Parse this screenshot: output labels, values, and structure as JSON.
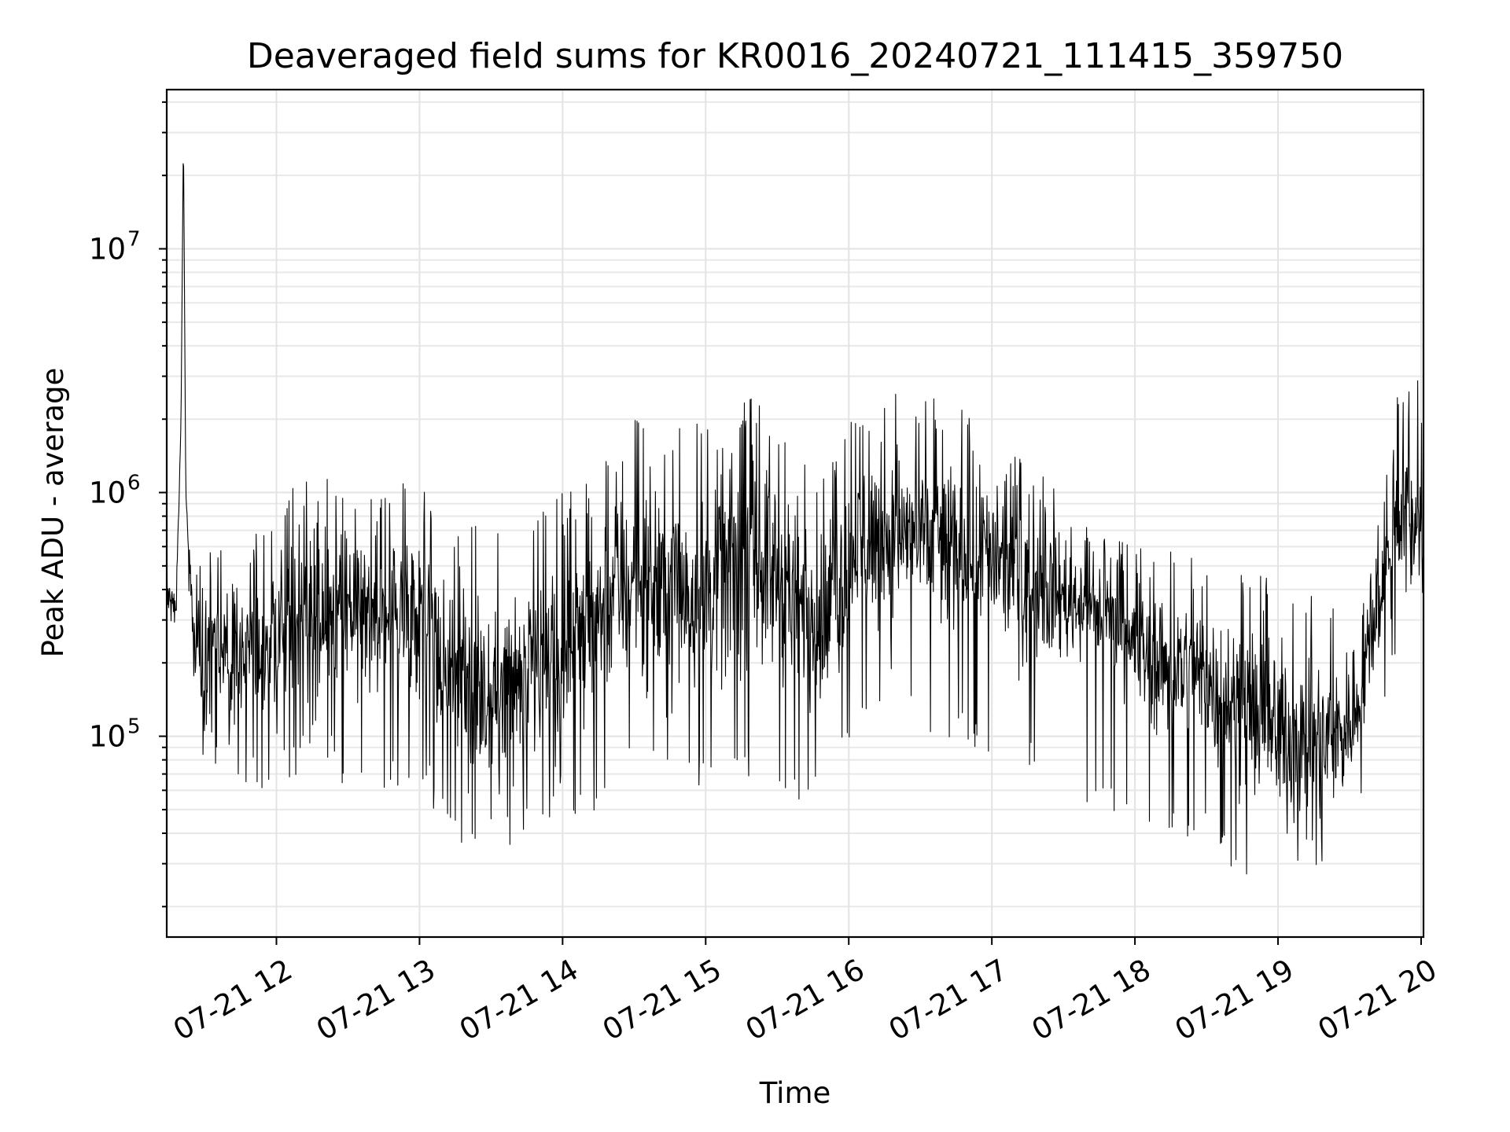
{
  "chart_data": {
    "type": "line",
    "title": "Deaveraged field sums for KR0016_20240721_111415_359750",
    "xlabel": "Time",
    "ylabel": "Peak ADU - average",
    "yscale": "log",
    "xlim": [
      "2024-07-21 11:14",
      "2024-07-21 20:01"
    ],
    "ylim": [
      15000,
      45000000
    ],
    "grid": true,
    "x_ticks": [
      "07-21 12",
      "07-21 13",
      "07-21 14",
      "07-21 15",
      "07-21 16",
      "07-21 17",
      "07-21 18",
      "07-21 19",
      "07-21 20"
    ],
    "y_ticks": [
      {
        "base": "10",
        "exp": "5",
        "value": 100000
      },
      {
        "base": "10",
        "exp": "6",
        "value": 1000000
      },
      {
        "base": "10",
        "exp": "7",
        "value": 10000000
      }
    ],
    "line_color": "#000000",
    "series": [
      {
        "x": [
          "2024-07-21 11:14",
          "2024-07-21 11:18",
          "2024-07-21 11:20",
          "2024-07-21 11:21",
          "2024-07-21 11:22",
          "2024-07-21 11:25",
          "2024-07-21 11:30",
          "2024-07-21 11:40",
          "2024-07-21 11:50",
          "2024-07-21 12:00",
          "2024-07-21 12:10",
          "2024-07-21 12:20",
          "2024-07-21 12:30",
          "2024-07-21 12:40",
          "2024-07-21 12:50",
          "2024-07-21 13:00",
          "2024-07-21 13:10",
          "2024-07-21 13:20",
          "2024-07-21 13:30",
          "2024-07-21 13:40",
          "2024-07-21 13:50",
          "2024-07-21 14:00",
          "2024-07-21 14:10",
          "2024-07-21 14:20",
          "2024-07-21 14:30",
          "2024-07-21 14:40",
          "2024-07-21 14:50",
          "2024-07-21 15:00",
          "2024-07-21 15:10",
          "2024-07-21 15:20",
          "2024-07-21 15:30",
          "2024-07-21 15:40",
          "2024-07-21 15:50",
          "2024-07-21 16:00",
          "2024-07-21 16:10",
          "2024-07-21 16:20",
          "2024-07-21 16:30",
          "2024-07-21 16:40",
          "2024-07-21 16:50",
          "2024-07-21 17:00",
          "2024-07-21 17:10",
          "2024-07-21 17:20",
          "2024-07-21 17:30",
          "2024-07-21 17:40",
          "2024-07-21 17:50",
          "2024-07-21 18:00",
          "2024-07-21 18:10",
          "2024-07-21 18:20",
          "2024-07-21 18:30",
          "2024-07-21 18:40",
          "2024-07-21 18:50",
          "2024-07-21 19:00",
          "2024-07-21 19:10",
          "2024-07-21 19:20",
          "2024-07-21 19:30",
          "2024-07-21 19:40",
          "2024-07-21 19:50",
          "2024-07-21 20:00",
          "2024-07-21 20:01"
        ],
        "y": [
          400000,
          350000,
          2000000,
          30000000,
          1000000,
          250000,
          200000,
          220000,
          250000,
          250000,
          280000,
          300000,
          320000,
          300000,
          330000,
          330000,
          200000,
          170000,
          150000,
          160000,
          170000,
          220000,
          280000,
          380000,
          420000,
          420000,
          420000,
          420000,
          480000,
          550000,
          450000,
          330000,
          300000,
          520000,
          650000,
          700000,
          650000,
          600000,
          600000,
          550000,
          450000,
          400000,
          380000,
          350000,
          300000,
          230000,
          200000,
          200000,
          170000,
          150000,
          120000,
          100000,
          100000,
          90000,
          110000,
          280000,
          800000,
          700000,
          500000
        ],
        "upper_envelope": [
          700000,
          600000,
          2000000,
          30000000,
          1000000,
          500000,
          600000,
          700000,
          700000,
          900000,
          1200000,
          1300000,
          1000000,
          1000000,
          1200000,
          1200000,
          600000,
          800000,
          700000,
          800000,
          900000,
          1000000,
          1200000,
          1500000,
          2000000,
          2000000,
          2000000,
          2200000,
          2500000,
          2600000,
          2000000,
          1500000,
          1300000,
          2000000,
          2300000,
          2800000,
          2500000,
          2500000,
          2200000,
          1500000,
          1500000,
          1200000,
          1000000,
          800000,
          700000,
          600000,
          600000,
          600000,
          500000,
          500000,
          500000,
          400000,
          400000,
          350000,
          300000,
          600000,
          2500000,
          3000000,
          700000
        ],
        "lower_envelope": [
          300000,
          250000,
          2000000,
          30000000,
          1000000,
          100000,
          80000,
          70000,
          60000,
          60000,
          70000,
          70000,
          60000,
          60000,
          60000,
          70000,
          40000,
          35000,
          35000,
          35000,
          40000,
          50000,
          45000,
          50000,
          80000,
          80000,
          70000,
          60000,
          60000,
          70000,
          60000,
          50000,
          80000,
          90000,
          120000,
          150000,
          100000,
          90000,
          90000,
          80000,
          70000,
          70000,
          60000,
          50000,
          50000,
          45000,
          40000,
          35000,
          35000,
          28000,
          25000,
          25000,
          30000,
          28000,
          30000,
          60000,
          200000,
          300000,
          350000
        ]
      }
    ]
  }
}
